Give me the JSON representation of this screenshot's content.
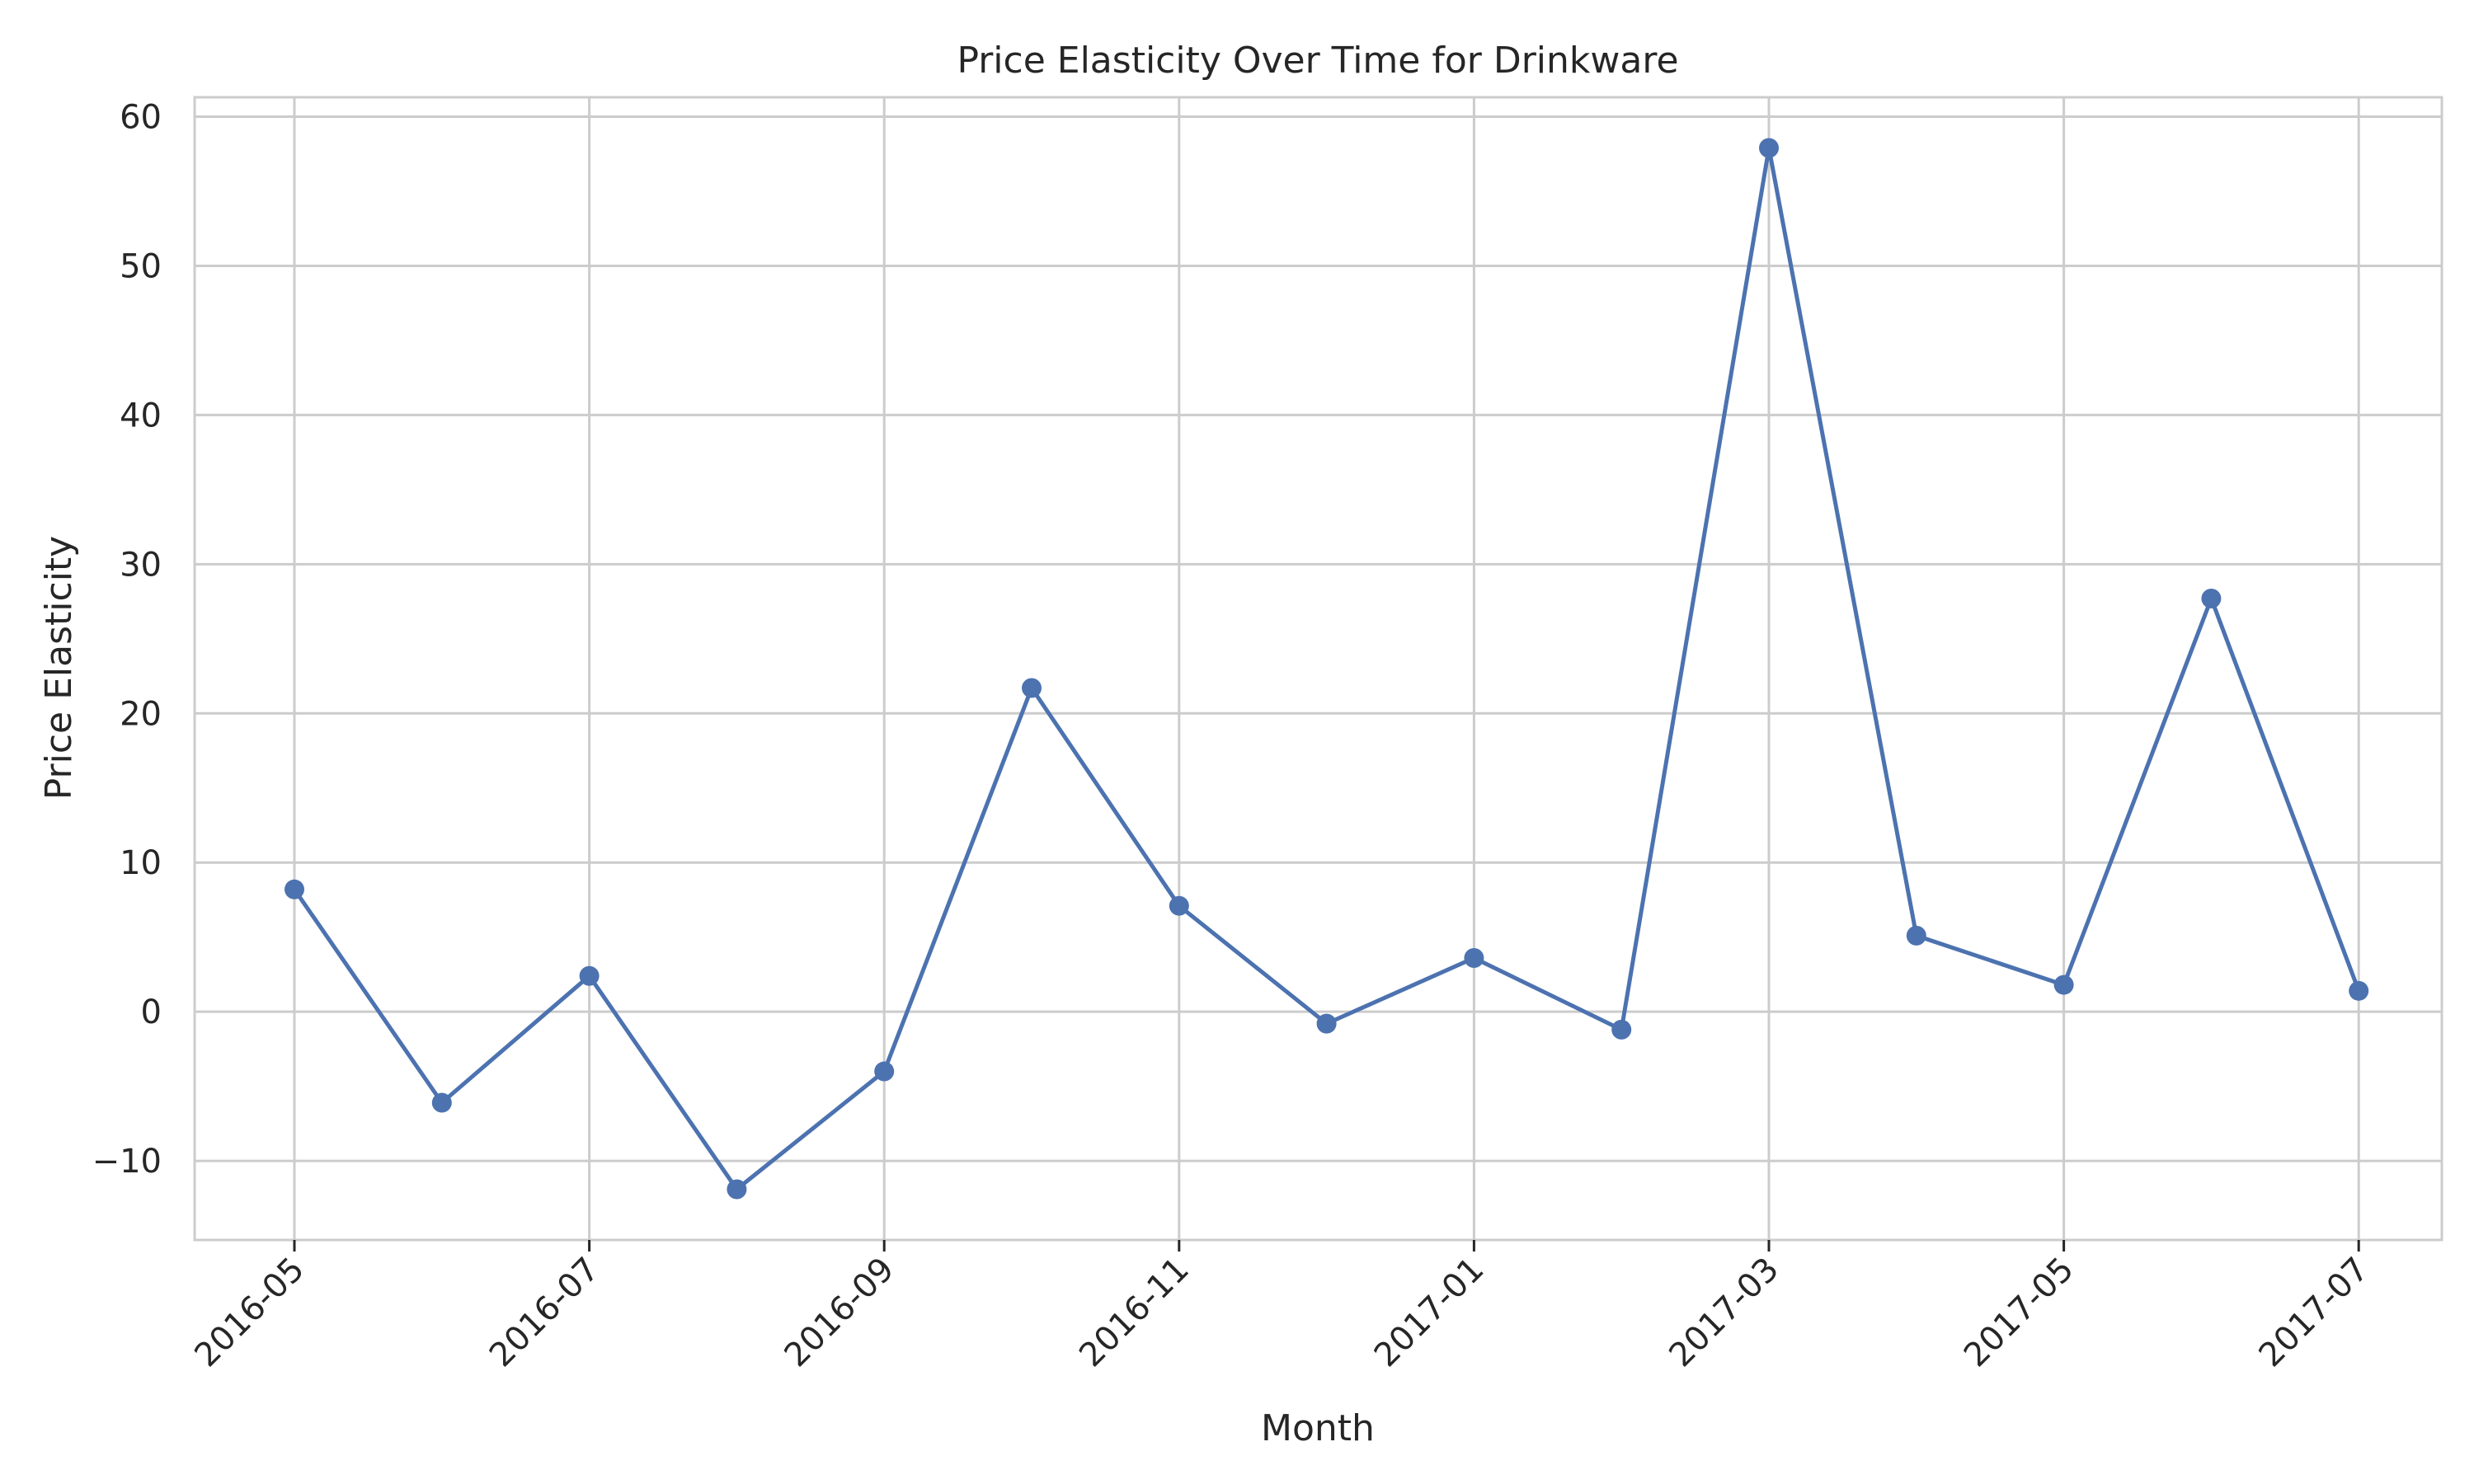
{
  "chart_data": {
    "type": "line",
    "title": "Price Elasticity Over Time for Drinkware",
    "xlabel": "Month",
    "ylabel": "Price Elasticity",
    "x": [
      "2016-05",
      "2016-06",
      "2016-07",
      "2016-08",
      "2016-09",
      "2016-10",
      "2016-11",
      "2016-12",
      "2017-01",
      "2017-02",
      "2017-03",
      "2017-04",
      "2017-05",
      "2017-06",
      "2017-07"
    ],
    "series": [
      {
        "values": [
          8.2,
          -6.1,
          2.4,
          -11.9,
          -4.0,
          21.7,
          7.1,
          -0.8,
          3.6,
          -1.2,
          57.9,
          5.1,
          1.8,
          27.7,
          1.4
        ]
      }
    ],
    "xticks": [
      "2016-05",
      "2016-07",
      "2016-09",
      "2016-11",
      "2017-01",
      "2017-03",
      "2017-05",
      "2017-07"
    ],
    "yticks": [
      -10,
      0,
      10,
      20,
      30,
      40,
      50,
      60
    ],
    "ytick_labels": [
      "−10",
      "0",
      "10",
      "20",
      "30",
      "40",
      "50",
      "60"
    ],
    "ylim": [
      -15.3,
      61.3
    ],
    "grid": true,
    "colors": {
      "line": "#4c72b0",
      "grid": "#cccccc",
      "spine": "#cccccc"
    }
  }
}
